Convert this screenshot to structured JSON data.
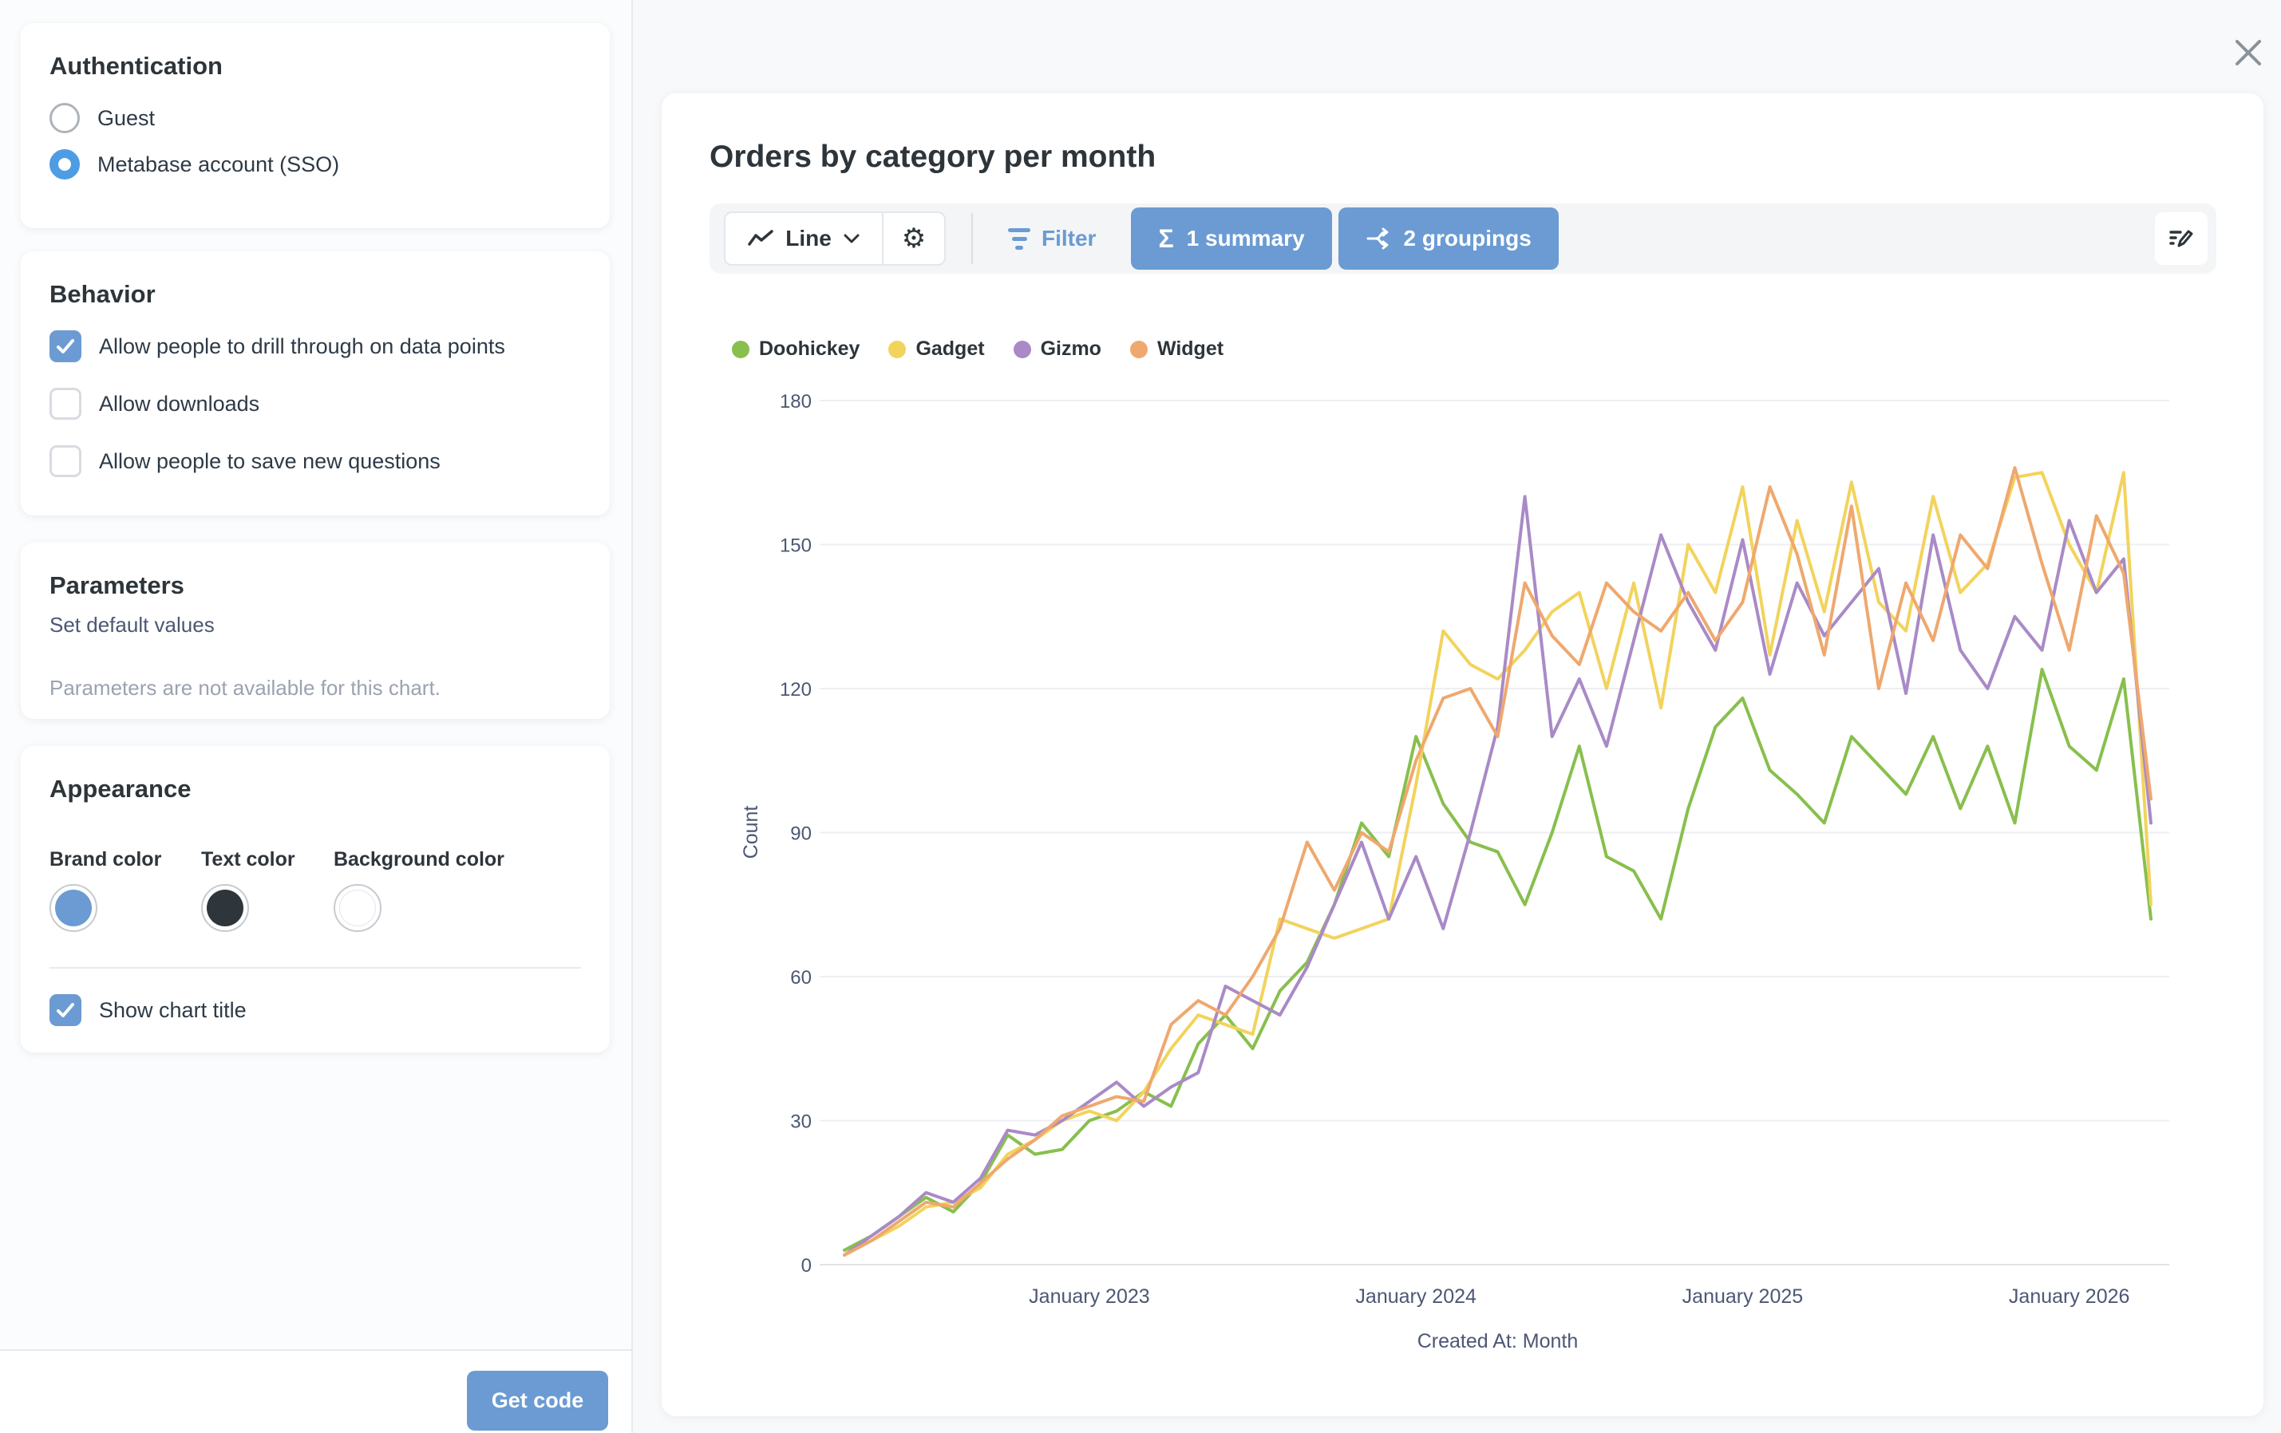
{
  "sidebar": {
    "authentication": {
      "title": "Authentication",
      "options": [
        {
          "label": "Guest",
          "selected": false
        },
        {
          "label": "Metabase account (SSO)",
          "selected": true
        }
      ]
    },
    "behavior": {
      "title": "Behavior",
      "items": [
        {
          "label": "Allow people to drill through on data points",
          "checked": true
        },
        {
          "label": "Allow downloads",
          "checked": false
        },
        {
          "label": "Allow people to save new questions",
          "checked": false
        }
      ]
    },
    "parameters": {
      "title": "Parameters",
      "subtitle": "Set default values",
      "empty_message": "Parameters are not available for this chart."
    },
    "appearance": {
      "title": "Appearance",
      "pickers": [
        {
          "label": "Brand color",
          "value": "#6B9BD2"
        },
        {
          "label": "Text color",
          "value": "#2E353B"
        },
        {
          "label": "Background color",
          "value": "#FFFFFF"
        }
      ],
      "show_chart_title": {
        "label": "Show chart title",
        "checked": true
      }
    },
    "footer": {
      "get_code_label": "Get code"
    }
  },
  "preview": {
    "card_title": "Orders by category per month",
    "toolbar": {
      "chart_type_label": "Line",
      "chart_type_icon": "trend-line-icon",
      "dropdown_icon": "chevron-down-icon",
      "settings_icon": "gear-icon",
      "filter_label": "Filter",
      "filter_icon": "funnel-icon",
      "summary_label": "1 summary",
      "summary_icon": "sigma-icon",
      "groupings_label": "2 groupings",
      "groupings_icon": "split-icon",
      "edit_icon": "edit-pencil-icon"
    },
    "warning_icon": "warning-triangle-icon",
    "close_icon": "close-icon"
  },
  "chart_data": {
    "type": "line",
    "title": "Orders by category per month",
    "xlabel": "Created At: Month",
    "ylabel": "Count",
    "ylim": [
      0,
      180
    ],
    "y_ticks": [
      0,
      30,
      60,
      90,
      120,
      150,
      180
    ],
    "grid": "horizontal",
    "legend_position": "top-left",
    "x_tick_labels": [
      {
        "label": "January 2023",
        "index": 9
      },
      {
        "label": "January 2024",
        "index": 21
      },
      {
        "label": "January 2025",
        "index": 33
      },
      {
        "label": "January 2026",
        "index": 45
      }
    ],
    "categories": [
      "2022-04",
      "2022-05",
      "2022-06",
      "2022-07",
      "2022-08",
      "2022-09",
      "2022-10",
      "2022-11",
      "2022-12",
      "2023-01",
      "2023-02",
      "2023-03",
      "2023-04",
      "2023-05",
      "2023-06",
      "2023-07",
      "2023-08",
      "2023-09",
      "2023-10",
      "2023-11",
      "2023-12",
      "2024-01",
      "2024-02",
      "2024-03",
      "2024-04",
      "2024-05",
      "2024-06",
      "2024-07",
      "2024-08",
      "2024-09",
      "2024-10",
      "2024-11",
      "2024-12",
      "2025-01",
      "2025-02",
      "2025-03",
      "2025-04",
      "2025-05",
      "2025-06",
      "2025-07",
      "2025-08",
      "2025-09",
      "2025-10",
      "2025-11",
      "2025-12",
      "2026-01",
      "2026-02",
      "2026-03",
      "2026-04"
    ],
    "series": [
      {
        "name": "Doohickey",
        "color": "#88BF4D",
        "values": [
          3,
          6,
          10,
          14,
          11,
          17,
          27,
          23,
          24,
          30,
          32,
          36,
          33,
          46,
          52,
          45,
          57,
          63,
          75,
          92,
          85,
          110,
          96,
          88,
          86,
          75,
          90,
          108,
          85,
          82,
          72,
          95,
          112,
          118,
          103,
          98,
          92,
          110,
          104,
          98,
          110,
          95,
          108,
          92,
          124,
          108,
          103,
          122,
          72
        ]
      },
      {
        "name": "Gadget",
        "color": "#F2D35C",
        "values": [
          2,
          5,
          8,
          12,
          13,
          16,
          23,
          26,
          30,
          32,
          30,
          36,
          45,
          52,
          50,
          48,
          72,
          70,
          68,
          70,
          72,
          100,
          132,
          125,
          122,
          128,
          136,
          140,
          120,
          142,
          116,
          150,
          140,
          162,
          127,
          155,
          136,
          163,
          138,
          132,
          160,
          140,
          146,
          164,
          165,
          150,
          140,
          165,
          75
        ]
      },
      {
        "name": "Gizmo",
        "color": "#A98AC6",
        "values": [
          2,
          6,
          10,
          15,
          13,
          18,
          28,
          27,
          30,
          34,
          38,
          33,
          37,
          40,
          58,
          55,
          52,
          62,
          75,
          88,
          72,
          85,
          70,
          90,
          112,
          160,
          110,
          122,
          108,
          130,
          152,
          138,
          128,
          151,
          123,
          142,
          131,
          138,
          145,
          119,
          152,
          128,
          120,
          135,
          128,
          155,
          140,
          147,
          92
        ]
      },
      {
        "name": "Widget",
        "color": "#EFA86E",
        "values": [
          2,
          5,
          9,
          13,
          12,
          17,
          22,
          26,
          31,
          33,
          35,
          34,
          50,
          55,
          52,
          60,
          70,
          88,
          78,
          90,
          86,
          105,
          118,
          120,
          110,
          142,
          131,
          125,
          142,
          136,
          132,
          140,
          130,
          138,
          162,
          148,
          127,
          158,
          120,
          142,
          130,
          152,
          145,
          166,
          146,
          128,
          156,
          144,
          97
        ]
      }
    ]
  }
}
